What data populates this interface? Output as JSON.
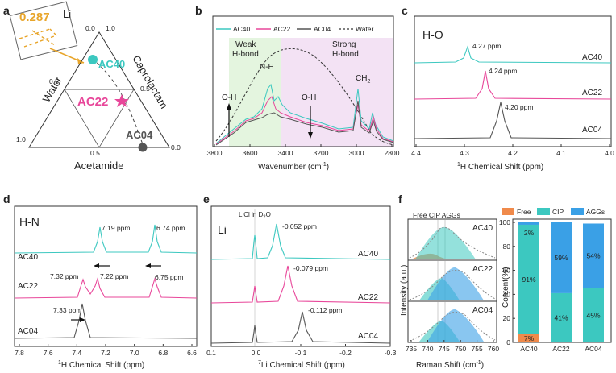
{
  "panels": {
    "a": {
      "label": "a",
      "zoom_value": "0.287",
      "zoom_element": "Li",
      "vertex_top": "Li",
      "side_left": "Water",
      "side_right": "Caprolactam",
      "bottom_label": "Acetamide",
      "ticks": {
        "top_0": "0.0",
        "top_1": "1.0",
        "left_05": "0.5",
        "right_05": "0.5",
        "bl_10": "1.0",
        "bot_05": "0.5",
        "br_00": "0.0"
      },
      "points": [
        {
          "name": "AC40",
          "color": "#3cc8c0"
        },
        {
          "name": "AC22",
          "color": "#e8479a"
        },
        {
          "name": "AC04",
          "color": "#555555"
        }
      ]
    },
    "b": {
      "label": "b",
      "legend": [
        "AC40",
        "AC22",
        "AC04",
        "Water"
      ],
      "regions": {
        "weak": "Weak",
        "weak2": "H-bond",
        "strong": "Strong",
        "strong2": "H-bond"
      },
      "annotations": {
        "nh": "N-H",
        "oh_left": "O-H",
        "oh_right": "O-H",
        "ch2": "CH",
        "ch2_sub": "2"
      },
      "xlabel": "Wavenumber (cm",
      "xlabel_sup": "-1",
      "xlabel_end": ")",
      "xticks": [
        "3800",
        "3600",
        "3400",
        "3200",
        "3000",
        "2800"
      ]
    },
    "c": {
      "label": "c",
      "title": "H-O",
      "series": [
        {
          "name": "AC40",
          "peak": "4.27 ppm"
        },
        {
          "name": "AC22",
          "peak": "4.24 ppm"
        },
        {
          "name": "AC04",
          "peak": "4.20 ppm"
        }
      ],
      "xlabel_sup": "1",
      "xlabel": "H Chemical Shift (ppm)",
      "xticks": [
        "4.4",
        "4.3",
        "4.2",
        "4.1",
        "4.0"
      ]
    },
    "d": {
      "label": "d",
      "title": "H-N",
      "series": [
        {
          "name": "AC40",
          "peaks": [
            "7.19 ppm",
            "6.74 ppm"
          ]
        },
        {
          "name": "AC22",
          "peaks": [
            "7.32 ppm",
            "7.22 ppm",
            "6.75 ppm"
          ]
        },
        {
          "name": "AC04",
          "peaks": [
            "7.33 ppm"
          ]
        }
      ],
      "xlabel_sup": "1",
      "xlabel": "H Chemical Shift (ppm)",
      "xticks": [
        "7.8",
        "7.6",
        "7.4",
        "7.2",
        "7.0",
        "6.8",
        "6.6"
      ]
    },
    "e": {
      "label": "e",
      "title": "Li",
      "reference": "LiCl in D",
      "reference_sub": "2",
      "reference_end": "O",
      "series": [
        {
          "name": "AC40",
          "peak": "-0.052 ppm"
        },
        {
          "name": "AC22",
          "peak": "-0.079 ppm"
        },
        {
          "name": "AC04",
          "peak": "-0.112 ppm"
        }
      ],
      "xlabel_sup": "7",
      "xlabel": "Li Chemical Shift (ppm)",
      "xticks": [
        "0.1",
        "0.0",
        "-0.1",
        "-0.2",
        "-0.3"
      ]
    },
    "f": {
      "label": "f",
      "raman_header": "Free CIP AGGs",
      "raman_series": [
        "AC40",
        "AC22",
        "AC04"
      ],
      "ylabel": "Intensity (a.u.)",
      "xlabel": "Raman Shift (cm",
      "xlabel_sup": "-1",
      "xlabel_end": ")",
      "xticks": [
        "735",
        "740",
        "745",
        "750",
        "755",
        "760"
      ],
      "legend": [
        "Free",
        "CIP",
        "AGGs"
      ],
      "bar_ylabel": "Content(%)"
    }
  },
  "chart_data": [
    {
      "type": "line",
      "panel": "b",
      "xlabel": "Wavenumber (cm-1)",
      "xlim": [
        3800,
        2800
      ],
      "series": [
        {
          "name": "AC40",
          "color": "#3cc8c0"
        },
        {
          "name": "AC22",
          "color": "#e8479a"
        },
        {
          "name": "AC04",
          "color": "#555555"
        },
        {
          "name": "Water",
          "color": "#333333"
        }
      ]
    },
    {
      "type": "line",
      "panel": "c",
      "xlabel": "1H Chemical Shift (ppm)",
      "xlim": [
        4.4,
        4.0
      ],
      "series": [
        {
          "name": "AC40",
          "peak": 4.27
        },
        {
          "name": "AC22",
          "peak": 4.24
        },
        {
          "name": "AC04",
          "peak": 4.2
        }
      ]
    },
    {
      "type": "line",
      "panel": "d",
      "xlabel": "1H Chemical Shift (ppm)",
      "xlim": [
        7.85,
        6.55
      ],
      "series": [
        {
          "name": "AC40",
          "peaks": [
            7.19,
            6.74
          ]
        },
        {
          "name": "AC22",
          "peaks": [
            7.32,
            7.22,
            6.75
          ]
        },
        {
          "name": "AC04",
          "peaks": [
            7.33
          ]
        }
      ]
    },
    {
      "type": "line",
      "panel": "e",
      "xlabel": "7Li Chemical Shift (ppm)",
      "xlim": [
        0.1,
        -0.3
      ],
      "series": [
        {
          "name": "AC40",
          "peak": -0.052
        },
        {
          "name": "AC22",
          "peak": -0.079
        },
        {
          "name": "AC04",
          "peak": -0.112
        }
      ]
    },
    {
      "type": "bar",
      "panel": "f",
      "stacked": true,
      "categories": [
        "AC40",
        "AC22",
        "AC04"
      ],
      "ylabel": "Content(%)",
      "ylim": [
        0,
        100
      ],
      "series": [
        {
          "name": "Free",
          "color": "#f08a4b",
          "values": [
            7,
            0,
            0
          ],
          "labels": [
            "7%",
            "",
            ""
          ]
        },
        {
          "name": "CIP",
          "color": "#3cc8c0",
          "values": [
            91,
            41,
            45
          ],
          "labels": [
            "91%",
            "41%",
            "45%"
          ]
        },
        {
          "name": "AGGs",
          "color": "#3aa0e6",
          "values": [
            2,
            59,
            54
          ],
          "labels": [
            "2%",
            "59%",
            "54%"
          ]
        }
      ]
    }
  ]
}
